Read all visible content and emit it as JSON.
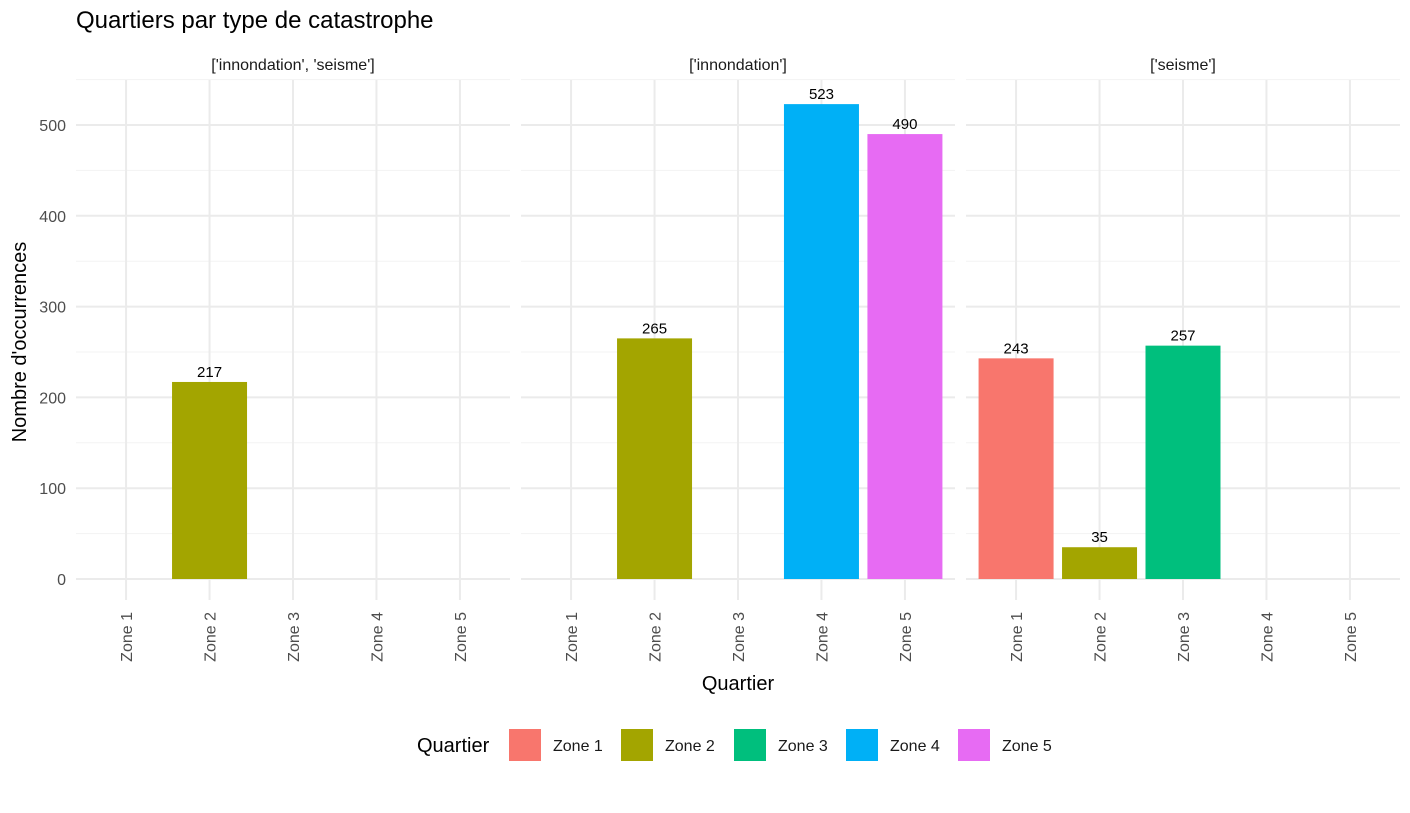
{
  "chart_data": {
    "type": "bar",
    "title": "Quartiers par type de catastrophe",
    "xlabel": "Quartier",
    "ylabel": "Nombre d'occurrences",
    "categories": [
      "Zone 1",
      "Zone 2",
      "Zone 3",
      "Zone 4",
      "Zone 5"
    ],
    "ylim": [
      0,
      550
    ],
    "yticks": [
      0,
      100,
      200,
      300,
      400,
      500
    ],
    "grid": true,
    "legend": {
      "title": "Quartier",
      "placement": "bottom",
      "entries": [
        "Zone 1",
        "Zone 2",
        "Zone 3",
        "Zone 4",
        "Zone 5"
      ]
    },
    "colors": {
      "Zone 1": "#F8766D",
      "Zone 2": "#A3A500",
      "Zone 3": "#00BF7D",
      "Zone 4": "#00B0F6",
      "Zone 5": "#E76BF3"
    },
    "facets": [
      {
        "label": "['innondation', 'seisme']",
        "values": [
          null,
          217,
          null,
          null,
          null
        ]
      },
      {
        "label": "['innondation']",
        "values": [
          null,
          265,
          null,
          523,
          490
        ]
      },
      {
        "label": "['seisme']",
        "values": [
          243,
          35,
          257,
          null,
          null
        ]
      }
    ]
  }
}
